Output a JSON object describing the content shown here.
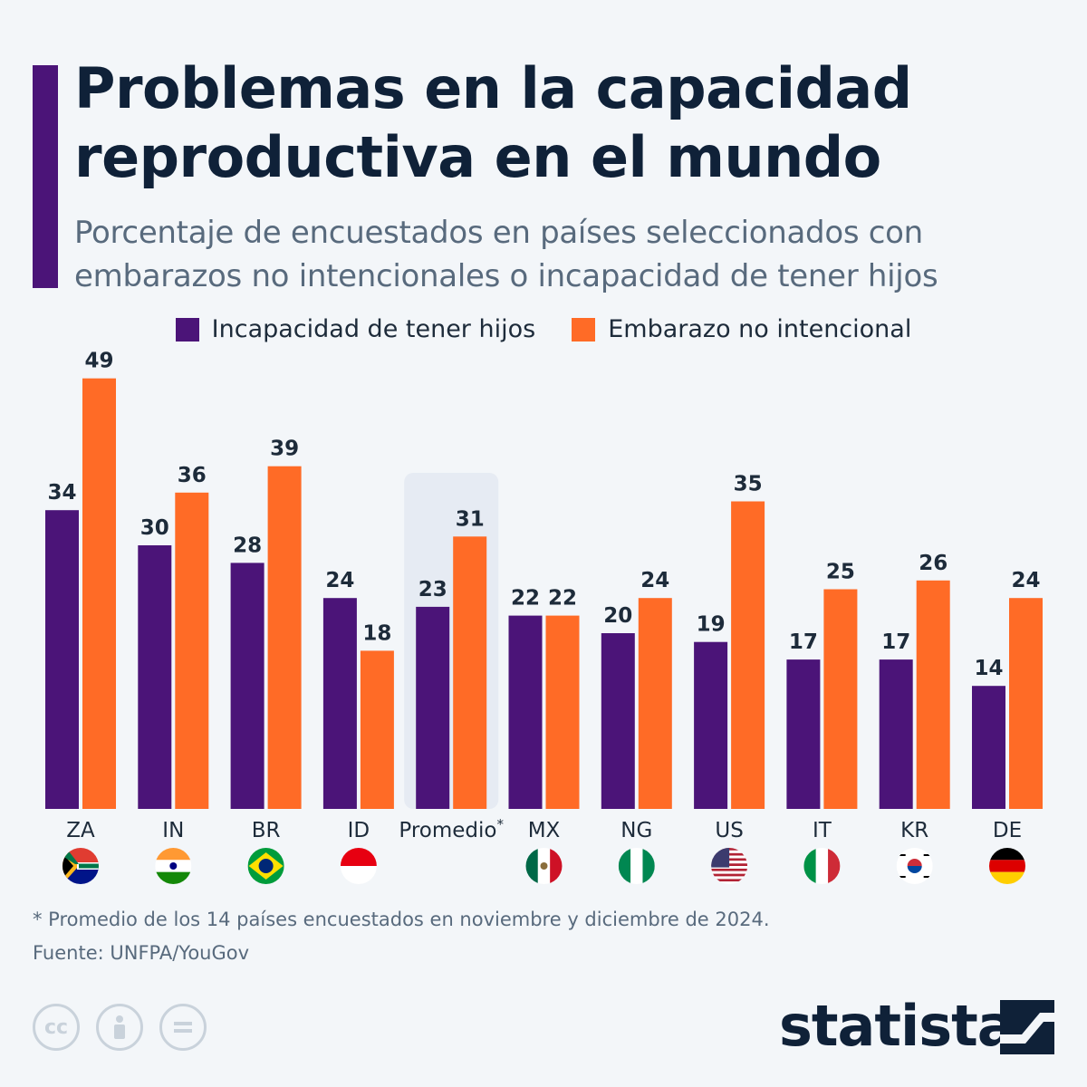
{
  "header": {
    "title": "Problemas en la capacidad reproductiva en el mundo",
    "subtitle": "Porcentaje de encuestados en países seleccionados con embarazos no intencionales o incapacidad de tener hijos"
  },
  "colors": {
    "series1": "#4b1478",
    "series2": "#ff6b26",
    "highlight_bg": "#e6ebf3"
  },
  "chart_data": {
    "type": "bar",
    "categories": [
      "ZA",
      "IN",
      "BR",
      "ID",
      "Promedio",
      "MX",
      "NG",
      "US",
      "IT",
      "KR",
      "DE"
    ],
    "highlight_category": "Promedio",
    "highlight_marker": "*",
    "series": [
      {
        "name": "Incapacidad de tener hijos",
        "values": [
          34,
          30,
          28,
          24,
          23,
          22,
          20,
          19,
          17,
          17,
          14
        ]
      },
      {
        "name": "Embarazo no intencional",
        "values": [
          49,
          36,
          39,
          18,
          31,
          22,
          24,
          35,
          25,
          26,
          24
        ]
      }
    ],
    "legend_position": "top",
    "flags": [
      "za-flag-icon",
      "in-flag-icon",
      "br-flag-icon",
      "id-flag-icon",
      "",
      "mx-flag-icon",
      "ng-flag-icon",
      "us-flag-icon",
      "it-flag-icon",
      "kr-flag-icon",
      "de-flag-icon"
    ]
  },
  "footer": {
    "footnote": "* Promedio de los 14 países encuestados en noviembre y diciembre de 2024.",
    "source": "Fuente: UNFPA/YouGov",
    "brand": "statista",
    "license_icons": [
      "cc-icon",
      "attribution-icon",
      "no-derivatives-icon"
    ]
  }
}
